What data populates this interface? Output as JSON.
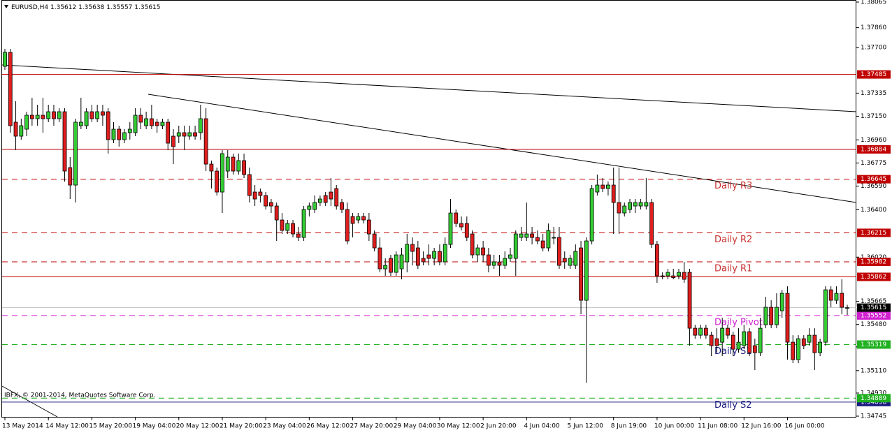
{
  "chart_data": {
    "type": "candlestick",
    "title": "EURUSD,H4",
    "copyright": "IBFX, © 2001-2014, MetaQuotes Software Corp.",
    "up_color": "#33cc33",
    "down_color": "#e01e1e",
    "ylim": [
      1.34745,
      1.38065
    ],
    "yticks": [
      1.38065,
      {
        "value": 1.3786,
        "label": "1.37860"
      },
      {
        "value": 1.377,
        "label": "1.37700"
      },
      1.37335,
      {
        "value": 1.3715,
        "label": "1.37150"
      },
      {
        "value": 1.3696,
        "label": "1.36960"
      },
      1.36775,
      {
        "value": 1.3659,
        "label": "1.36590"
      },
      {
        "value": 1.364,
        "label": "1.36400"
      },
      {
        "value": 1.3602,
        "label": "1.36020"
      },
      1.35665,
      {
        "value": 1.3548,
        "label": "1.35480"
      },
      {
        "value": 1.353,
        "label": "1.35300"
      },
      {
        "value": 1.3511,
        "label": "1.35110"
      },
      {
        "value": 1.3493,
        "label": "1.34930"
      },
      1.34745
    ],
    "levels": [
      {
        "price": 1.37485,
        "color": "#c00000",
        "dashed": false
      },
      {
        "price": 1.36884,
        "color": "#c00000",
        "dashed": false
      },
      {
        "price": 1.36645,
        "color": "#c00000",
        "dashed": true,
        "name": "Daily R3",
        "label_color": "#c83232"
      },
      {
        "price": 1.36215,
        "color": "#c00000",
        "dashed": true,
        "name": "Daily R2",
        "label_color": "#c83232"
      },
      {
        "price": 1.35982,
        "color": "#c00000",
        "dashed": true,
        "name": "Daily R1",
        "label_color": "#c83232"
      },
      {
        "price": 1.35862,
        "color": "#c00000",
        "dashed": false
      },
      {
        "price": 1.35552,
        "color": "#d020d0",
        "dashed": true,
        "name": "Daily Pivot",
        "label_color": "#d020d0"
      },
      {
        "price": 1.35319,
        "color": "#20b020",
        "dashed": true,
        "name": "Daily S1",
        "label_color": "#1a1a80"
      },
      {
        "price": 1.34858,
        "color": "#1a1a80",
        "dashed": false
      },
      {
        "price": 1.34889,
        "color": "#20b020",
        "dashed": true,
        "name": "Daily S2",
        "label_color": "#1a1a80"
      }
    ],
    "categories": [
      "13 May 2014",
      null,
      null,
      null,
      null,
      null,
      null,
      null,
      "14 May 12:00",
      null,
      null,
      null,
      null,
      null,
      null,
      null,
      "15 May 20:00",
      null,
      null,
      null,
      null,
      null,
      null,
      null,
      "19 May 04:00",
      null,
      null,
      null,
      null,
      null,
      null,
      null,
      "20 May 12:00",
      null,
      null,
      null,
      null,
      null,
      null,
      null,
      "21 May 20:00",
      null,
      null,
      null,
      null,
      null,
      null,
      null,
      "23 May 04:00",
      null,
      null,
      null,
      null,
      null,
      null,
      null,
      "26 May 12:00",
      null,
      null,
      null,
      null,
      null,
      null,
      null,
      "27 May 20:00",
      null,
      null,
      null,
      null,
      null,
      null,
      null,
      "29 May 04:00",
      null,
      null,
      null,
      null,
      null,
      null,
      null,
      "30 May 12:00",
      null,
      null,
      null,
      null,
      null,
      null,
      null,
      "2 Jun 20:00",
      null,
      null,
      null,
      null,
      null,
      null,
      null,
      "4 Jun 04:00",
      null,
      null,
      null,
      null,
      null,
      null,
      null,
      "5 Jun 12:00",
      null,
      null,
      null,
      null,
      null,
      null,
      null,
      "8 Jun 19:00",
      null,
      null,
      null,
      null,
      null,
      null,
      null,
      "10 Jun 00:00",
      null,
      null,
      null,
      null,
      null,
      null,
      null,
      "11 Jun 08:00",
      null,
      null,
      null,
      null,
      null,
      null,
      null,
      "12 Jun 16:00",
      null,
      null,
      null,
      null,
      null,
      null,
      null,
      "16 Jun 00:00",
      null,
      null,
      null,
      null,
      null,
      null,
      null,
      null,
      null,
      null,
      null
    ],
    "open": [
      1.3755,
      1.37662,
      1.37102,
      1.3699,
      1.37046,
      1.37158,
      1.3713,
      1.37158,
      1.3713,
      1.37186,
      1.3713,
      1.37186,
      1.36738,
      1.36598,
      1.37074,
      1.37074,
      1.37186,
      1.3713,
      1.37186,
      1.37186,
      1.36962,
      1.37046,
      1.36962,
      1.37018,
      1.37018,
      1.37158,
      1.37074,
      1.3713,
      1.37102,
      1.37074,
      1.37102,
      1.3699,
      1.3699,
      1.37018,
      1.3699,
      1.37018,
      1.37018,
      1.3713,
      1.36766,
      1.3671,
      1.36542,
      1.3671,
      1.36822,
      1.3671,
      1.36794,
      1.36682,
      1.36542,
      1.36542,
      1.36514,
      1.36458,
      1.3643,
      1.36318,
      1.36234,
      1.3629,
      1.36206,
      1.36178,
      1.36402,
      1.36402,
      1.36458,
      1.36514,
      1.36542,
      1.3657,
      1.36458,
      1.36402,
      1.36346,
      1.36318,
      1.36346,
      1.36318,
      1.36206,
      1.36094,
      1.35926,
      1.3601,
      1.35898,
      1.35926,
      1.35982,
      1.36122,
      1.36094,
      1.3601,
      1.36038,
      1.3601,
      1.36066,
      1.35982,
      1.36122,
      1.36374,
      1.3629,
      1.3629,
      1.36206,
      1.36038,
      1.36094,
      1.36038,
      1.35954,
      1.35982,
      1.35954,
      1.3601,
      1.3601,
      1.36178,
      1.36178,
      1.36206,
      1.36178,
      1.3615,
      1.36094,
      1.36178,
      1.36178,
      1.3601,
      1.35954,
      1.35954,
      1.36094,
      1.35674,
      1.3615,
      1.36542,
      1.36598,
      1.3657,
      1.36598,
      1.36458,
      1.36374,
      1.36402,
      1.3643,
      1.3643,
      1.3643,
      1.36458,
      1.36122,
      1.3587,
      1.3587,
      1.3587,
      1.3587,
      1.35898,
      1.35898,
      1.3545,
      1.35394,
      1.3545,
      1.35394,
      1.35366,
      1.35338,
      1.3545,
      1.35394,
      1.35282,
      1.3531,
      1.35422,
      1.3531,
      1.35254,
      1.35478,
      1.35618,
      1.35478,
      1.3559,
      1.3573,
      1.35338,
      1.35198,
      1.35366,
      1.35338,
      1.35394,
      1.35254,
      1.35338,
      1.35758,
      1.35674,
      1.3573,
      1.35612
    ],
    "high": [
      1.3769,
      1.3769,
      1.3727,
      1.3713,
      1.37186,
      1.37298,
      1.37242,
      1.37298,
      1.37242,
      1.37242,
      1.37214,
      1.37214,
      1.36822,
      1.3713,
      1.37298,
      1.37214,
      1.37242,
      1.37242,
      1.37242,
      1.37214,
      1.37102,
      1.37074,
      1.37046,
      1.37102,
      1.37214,
      1.37214,
      1.37186,
      1.37242,
      1.3713,
      1.3713,
      1.3713,
      1.37046,
      1.37074,
      1.37074,
      1.37074,
      1.37074,
      1.37242,
      1.37214,
      1.36794,
      1.36738,
      1.36878,
      1.36878,
      1.3685,
      1.3685,
      1.3685,
      1.36738,
      1.36598,
      1.3657,
      1.36542,
      1.36486,
      1.36458,
      1.36374,
      1.36318,
      1.36318,
      1.36262,
      1.3643,
      1.36458,
      1.36514,
      1.36514,
      1.36542,
      1.36654,
      1.36598,
      1.36486,
      1.36458,
      1.36374,
      1.36374,
      1.36374,
      1.36374,
      1.36234,
      1.36178,
      1.3601,
      1.36038,
      1.36066,
      1.36094,
      1.36206,
      1.36178,
      1.3615,
      1.36066,
      1.36122,
      1.36094,
      1.36122,
      1.36178,
      1.36486,
      1.36402,
      1.36346,
      1.36346,
      1.36234,
      1.36122,
      1.3615,
      1.36094,
      1.36038,
      1.36038,
      1.36066,
      1.36094,
      1.36234,
      1.36262,
      1.36458,
      1.36262,
      1.36234,
      1.36206,
      1.3629,
      1.36262,
      1.36262,
      1.36066,
      1.36038,
      1.36122,
      1.3615,
      1.36178,
      1.36598,
      1.36682,
      1.36654,
      1.36626,
      1.36738,
      1.36738,
      1.36458,
      1.36486,
      1.36486,
      1.36486,
      1.36654,
      1.36486,
      1.3615,
      1.35898,
      1.35926,
      1.35926,
      1.35926,
      1.35982,
      1.35926,
      1.35478,
      1.35478,
      1.35478,
      1.35422,
      1.3545,
      1.35534,
      1.35478,
      1.35422,
      1.3545,
      1.35478,
      1.3545,
      1.35366,
      1.35534,
      1.35702,
      1.35674,
      1.3573,
      1.35758,
      1.35786,
      1.35394,
      1.35394,
      1.35394,
      1.3545,
      1.3545,
      1.35366,
      1.35786,
      1.35786,
      1.35786,
      1.35842,
      1.35638
    ],
    "low": [
      1.37522,
      1.37018,
      1.36878,
      1.36962,
      1.3699,
      1.37074,
      1.37074,
      1.37018,
      1.37102,
      1.37074,
      1.37102,
      1.36626,
      1.36486,
      1.36458,
      1.37046,
      1.37046,
      1.37102,
      1.37102,
      1.37074,
      1.3685,
      1.36934,
      1.36906,
      1.36934,
      1.36962,
      1.3699,
      1.37046,
      1.37046,
      1.37046,
      1.37018,
      1.37046,
      1.36878,
      1.36766,
      1.36934,
      1.36878,
      1.36962,
      1.36962,
      1.36962,
      1.3671,
      1.3657,
      1.36514,
      1.36374,
      1.36654,
      1.36682,
      1.36682,
      1.36654,
      1.36458,
      1.3643,
      1.36458,
      1.36402,
      1.36374,
      1.3615,
      1.36206,
      1.36206,
      1.36178,
      1.3615,
      1.3615,
      1.36346,
      1.36374,
      1.3643,
      1.3643,
      1.3643,
      1.36402,
      1.36374,
      1.36122,
      1.36178,
      1.3629,
      1.3629,
      1.3615,
      1.36066,
      1.35898,
      1.3587,
      1.3587,
      1.3587,
      1.35842,
      1.35898,
      1.35954,
      1.35926,
      1.35954,
      1.35954,
      1.35954,
      1.35954,
      1.35954,
      1.36094,
      1.36262,
      1.36234,
      1.3615,
      1.3601,
      1.35982,
      1.35982,
      1.35898,
      1.35926,
      1.3587,
      1.35926,
      1.35982,
      1.3587,
      1.3615,
      1.3615,
      1.36122,
      1.36122,
      1.36066,
      1.36066,
      1.36122,
      1.35926,
      1.35926,
      1.35926,
      1.35926,
      1.35562,
      1.35013,
      1.36122,
      1.36514,
      1.36542,
      1.36514,
      1.36206,
      1.36206,
      1.36346,
      1.36374,
      1.36374,
      1.36402,
      1.36402,
      1.36094,
      1.35814,
      1.35842,
      1.35842,
      1.35842,
      1.35842,
      1.35814,
      1.3531,
      1.35366,
      1.35366,
      1.35366,
      1.35226,
      1.35254,
      1.35226,
      1.35366,
      1.35226,
      1.35254,
      1.35282,
      1.35226,
      1.35114,
      1.35226,
      1.3545,
      1.3545,
      1.3545,
      1.35534,
      1.35198,
      1.3517,
      1.3517,
      1.35282,
      1.3531,
      1.35114,
      1.35226,
      1.3531,
      1.35618,
      1.35646,
      1.35562,
      1.35557
    ],
    "close": [
      1.37662,
      1.37074,
      1.3699,
      1.37074,
      1.37158,
      1.3713,
      1.37158,
      1.3713,
      1.37186,
      1.3713,
      1.37186,
      1.3671,
      1.36598,
      1.37102,
      1.37102,
      1.37186,
      1.3713,
      1.37186,
      1.37158,
      1.36962,
      1.37046,
      1.36962,
      1.37018,
      1.37046,
      1.37158,
      1.37102,
      1.3713,
      1.37074,
      1.37074,
      1.37102,
      1.36934,
      1.36906,
      1.37018,
      1.3699,
      1.37018,
      1.3699,
      1.3713,
      1.36766,
      1.3671,
      1.36542,
      1.3685,
      1.36822,
      1.3671,
      1.36794,
      1.36682,
      1.36514,
      1.36486,
      1.36514,
      1.3643,
      1.3643,
      1.36318,
      1.36234,
      1.3629,
      1.36206,
      1.36178,
      1.36402,
      1.3643,
      1.36458,
      1.36486,
      1.36458,
      1.36486,
      1.3643,
      1.36402,
      1.3615,
      1.3629,
      1.36346,
      1.36318,
      1.36206,
      1.36094,
      1.35926,
      1.35954,
      1.35898,
      1.36038,
      1.36038,
      1.36122,
      1.36066,
      1.35954,
      1.35982,
      1.3601,
      1.36066,
      1.35982,
      1.36122,
      1.36374,
      1.3629,
      1.36262,
      1.36178,
      1.36038,
      1.36094,
      1.36038,
      1.35954,
      1.35982,
      1.35954,
      1.3601,
      1.36038,
      1.36206,
      1.36206,
      1.36206,
      1.36178,
      1.3615,
      1.36094,
      1.36234,
      1.36178,
      1.35954,
      1.35982,
      1.3601,
      1.36066,
      1.35674,
      1.3615,
      1.3657,
      1.36598,
      1.3657,
      1.36598,
      1.36458,
      1.36374,
      1.3643,
      1.36458,
      1.36458,
      1.36458,
      1.36458,
      1.36122,
      1.3587,
      1.35862,
      1.35898,
      1.35856,
      1.35898,
      1.35842,
      1.3545,
      1.35394,
      1.3545,
      1.35394,
      1.3531,
      1.3531,
      1.3545,
      1.35394,
      1.35282,
      1.35338,
      1.35422,
      1.35254,
      1.35254,
      1.3545,
      1.35618,
      1.35478,
      1.35618,
      1.3573,
      1.35338,
      1.35198,
      1.35366,
      1.3531,
      1.35394,
      1.35254,
      1.35338,
      1.35758,
      1.35674,
      1.3573,
      1.35618,
      1.35615
    ]
  }
}
